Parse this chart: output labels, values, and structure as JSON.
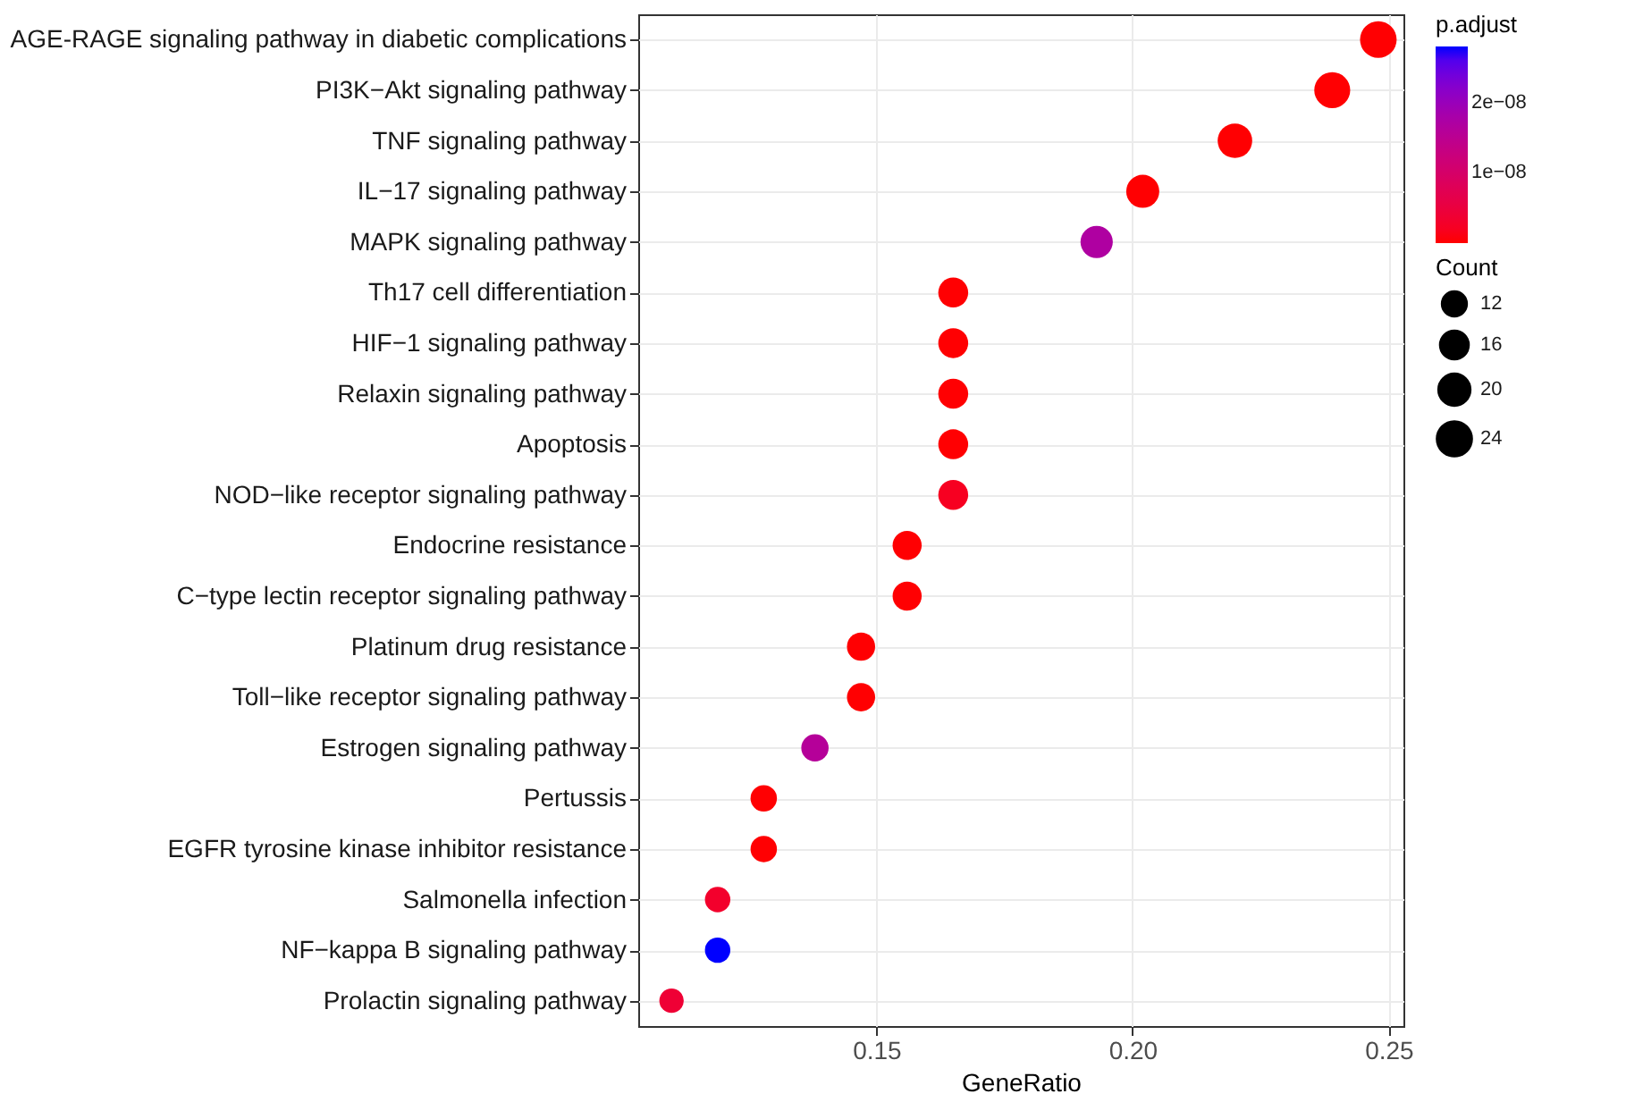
{
  "chart_data": {
    "type": "bubble",
    "orientation": "horizontal",
    "xlabel": "GeneRatio",
    "clabel": "p.adjust",
    "legend_title": "Count",
    "categories": [
      "AGE-RAGE signaling pathway in diabetic complications",
      "PI3K−Akt signaling pathway",
      "TNF signaling pathway",
      "IL−17 signaling pathway",
      "MAPK signaling pathway",
      "Th17 cell differentiation",
      "HIF−1 signaling pathway",
      "Relaxin signaling pathway",
      "Apoptosis",
      "NOD−like receptor signaling pathway",
      "Endocrine resistance",
      "C−type lectin receptor signaling pathway",
      "Platinum drug resistance",
      "Toll−like receptor signaling pathway",
      "Estrogen signaling pathway",
      "Pertussis",
      "EGFR tyrosine kinase inhibitor resistance",
      "Salmonella infection",
      "NF−kappa B signaling pathway",
      "Prolactin signaling pathway"
    ],
    "values": [
      0.248,
      0.239,
      0.22,
      0.202,
      0.193,
      0.165,
      0.165,
      0.165,
      0.165,
      0.165,
      0.156,
      0.156,
      0.147,
      0.147,
      0.138,
      0.128,
      0.128,
      0.119,
      0.119,
      0.11
    ],
    "sizes": [
      27,
      26,
      24,
      22,
      21,
      18,
      18,
      18,
      18,
      18,
      17,
      17,
      16,
      16,
      15,
      14,
      14,
      13,
      13,
      12
    ],
    "cvalues": [
      1e-10,
      1e-10,
      1e-10,
      1e-10,
      1.7e-08,
      1e-10,
      1e-10,
      1e-10,
      1e-10,
      2e-09,
      1e-10,
      1e-10,
      1e-10,
      1e-10,
      1.6e-08,
      1e-10,
      1e-10,
      3e-09,
      2.8e-08,
      4e-09
    ],
    "size_legend": [
      12,
      16,
      20,
      24
    ],
    "clim": [
      0,
      2.8e-08
    ],
    "cticks": [
      {
        "value": 1e-08,
        "label": "1e−08"
      },
      {
        "value": 2e-08,
        "label": "2e−08"
      }
    ],
    "xlim": [
      0.1035,
      0.2529
    ],
    "xticks": [
      {
        "value": 0.15,
        "label": "0.15"
      },
      {
        "value": 0.2,
        "label": "0.20"
      },
      {
        "value": 0.25,
        "label": "0.25"
      }
    ],
    "grid": true
  }
}
